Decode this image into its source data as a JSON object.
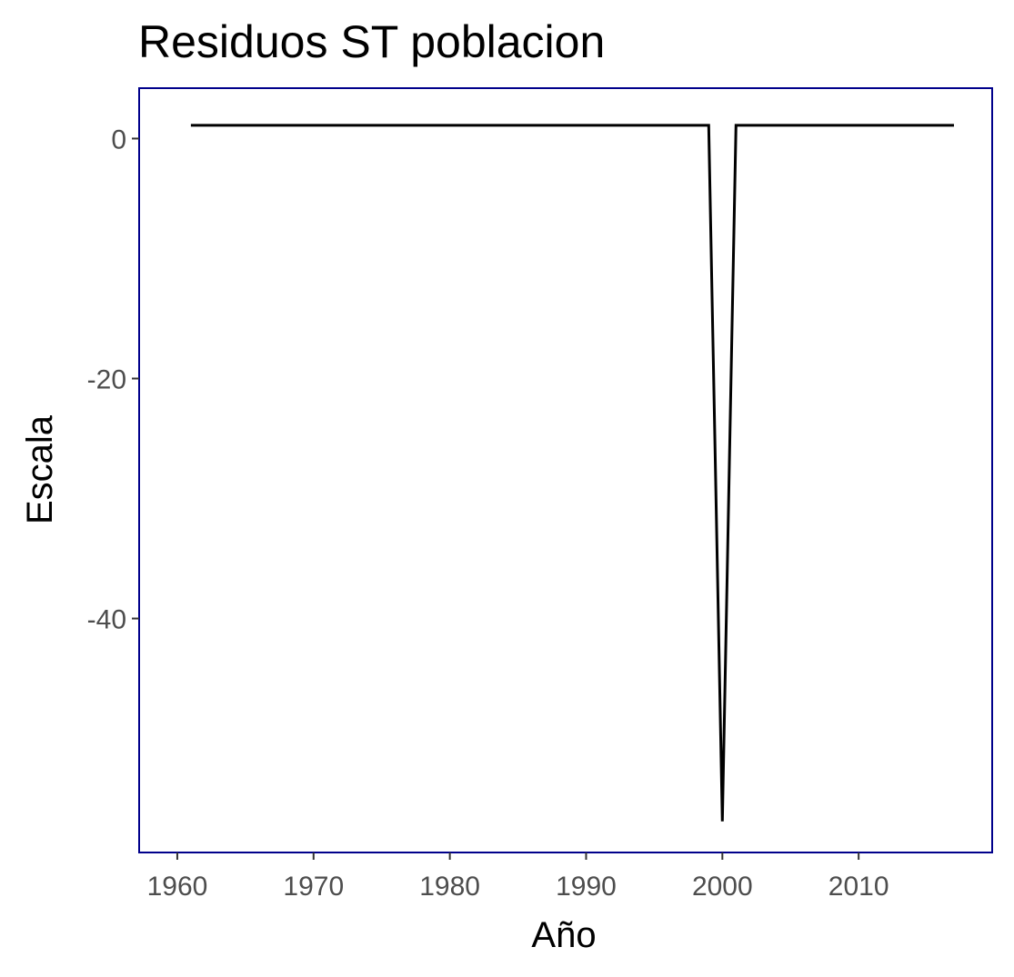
{
  "chart_data": {
    "type": "line",
    "title": "Residuos ST poblacion",
    "xlabel": "Año",
    "ylabel": "Escala",
    "x_ticks": [
      1960,
      1970,
      1980,
      1990,
      2000,
      2010
    ],
    "y_ticks": [
      0,
      -20,
      -40
    ],
    "xlim": [
      1957.2,
      2019.8
    ],
    "ylim": [
      -59.5,
      4.2
    ],
    "grid": false,
    "series": [
      {
        "x": [
          1961,
          1999,
          2000,
          2001,
          2017
        ],
        "values": [
          1.1,
          1.1,
          -56.9,
          1.1,
          1.1
        ],
        "color": "#000000"
      }
    ],
    "frame_color": "#00008b"
  }
}
